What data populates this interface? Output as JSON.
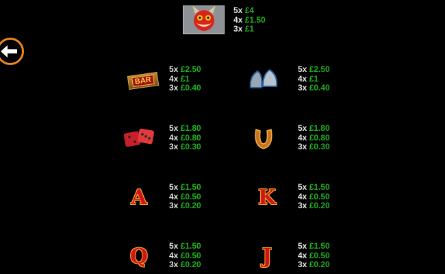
{
  "back_button": {
    "icon": "arrow-left-icon",
    "color": "#f08a1c"
  },
  "top_symbol": {
    "name": "devil",
    "icon": "devil-icon",
    "pays": [
      {
        "m": "5x",
        "v": "£4"
      },
      {
        "m": "4x",
        "v": "£1.50"
      },
      {
        "m": "3x",
        "v": "£1"
      }
    ]
  },
  "symbols": [
    {
      "name": "bar",
      "icon": "bar-icon",
      "label": "BAR",
      "pays": [
        {
          "m": "5x",
          "v": "£2.50"
        },
        {
          "m": "4x",
          "v": "£1"
        },
        {
          "m": "3x",
          "v": "£0.40"
        }
      ]
    },
    {
      "name": "bells",
      "icon": "bell-icon",
      "pays": [
        {
          "m": "5x",
          "v": "£2.50"
        },
        {
          "m": "4x",
          "v": "£1"
        },
        {
          "m": "3x",
          "v": "£0.40"
        }
      ]
    },
    {
      "name": "dice",
      "icon": "dice-icon",
      "pays": [
        {
          "m": "5x",
          "v": "£1.80"
        },
        {
          "m": "4x",
          "v": "£0.80"
        },
        {
          "m": "3x",
          "v": "£0.30"
        }
      ]
    },
    {
      "name": "horseshoe",
      "icon": "horseshoe-icon",
      "pays": [
        {
          "m": "5x",
          "v": "£1.80"
        },
        {
          "m": "4x",
          "v": "£0.80"
        },
        {
          "m": "3x",
          "v": "£0.30"
        }
      ]
    },
    {
      "name": "ace",
      "icon": "letter-a-icon",
      "label": "A",
      "pays": [
        {
          "m": "5x",
          "v": "£1.50"
        },
        {
          "m": "4x",
          "v": "£0.50"
        },
        {
          "m": "3x",
          "v": "£0.20"
        }
      ]
    },
    {
      "name": "king",
      "icon": "letter-k-icon",
      "label": "K",
      "pays": [
        {
          "m": "5x",
          "v": "£1.50"
        },
        {
          "m": "4x",
          "v": "£0.50"
        },
        {
          "m": "3x",
          "v": "£0.20"
        }
      ]
    },
    {
      "name": "queen",
      "icon": "letter-q-icon",
      "label": "Q",
      "pays": [
        {
          "m": "5x",
          "v": "£1.50"
        },
        {
          "m": "4x",
          "v": "£0.50"
        },
        {
          "m": "3x",
          "v": "£0.20"
        }
      ]
    },
    {
      "name": "jack",
      "icon": "letter-j-icon",
      "label": "J",
      "pays": [
        {
          "m": "5x",
          "v": "£1.50"
        },
        {
          "m": "4x",
          "v": "£0.50"
        },
        {
          "m": "3x",
          "v": "£0.20"
        }
      ]
    }
  ],
  "colors": {
    "multiplier": "#e8e8e8",
    "value": "#1fb21f",
    "background": "#000000"
  }
}
